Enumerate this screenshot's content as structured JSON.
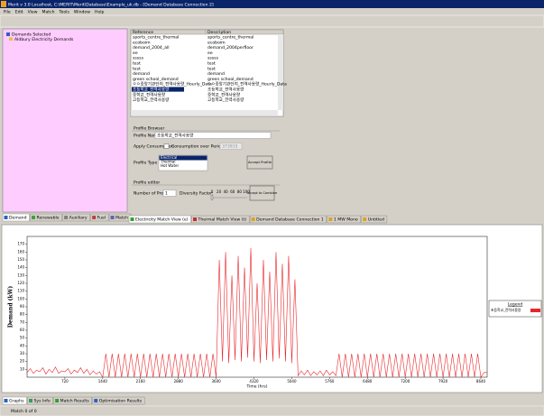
{
  "title_bar": "Merit v 3.0 Localhost, C:\\MERIT\\Merit\\Database\\Example_uk.db - [Demand Database Connection 2]",
  "menu": [
    "File",
    "Edit",
    "View",
    "Match",
    "Tools",
    "Window",
    "Help"
  ],
  "tree": [
    "Demands Selected",
    "Aldbury Electricity Demands"
  ],
  "table": {
    "headers": [
      "Reference",
      "Description"
    ],
    "rows": [
      [
        "sports_centre_thermal",
        "sports_centre_thermal"
      ],
      [
        "ecoboim",
        "ecoboim"
      ],
      [
        "demand_2004_all",
        "demand_2004perfloor"
      ],
      [
        "ee",
        "ee"
      ],
      [
        "sssss",
        "sssss"
      ],
      [
        "test",
        "test"
      ],
      [
        "test",
        "test"
      ],
      [
        "demand",
        "demand"
      ],
      [
        "green school_demand",
        "green school_demand"
      ],
      [
        "ㅇㅇ중앙기관단지_전력사용량_Hourly_Data",
        "ㅇㅇ중앙기관단지_전력사용량_Hourly_Data"
      ],
      [
        "초등학교_전력사용량",
        "초등학교_전력사용량"
      ],
      [
        "중학교_전력사용량",
        "중학교_전력사용량"
      ],
      [
        "고등학교_전력사용량",
        "고등학교_전력사용량"
      ]
    ]
  },
  "profile_browser": {
    "title": "Profile Browser",
    "name_label": "Profile Name:",
    "name_value": "초등학교_전력사용량",
    "apply_label": "Apply Consumption",
    "consumption_label": "Consumption over Period (kWh)",
    "consumption_value": "373915",
    "type_label": "Profile Type",
    "types": [
      "Electrical",
      "Thermal",
      "Hot Water"
    ],
    "accept": "Accept Profile"
  },
  "profile_editor": {
    "title": "Profile editor",
    "number_label": "Number of Profiles:",
    "number_value": "1",
    "diversity_label": "Diversity Factor:",
    "slider_labels": [
      "0",
      "20",
      "40",
      "60",
      "80",
      "100"
    ],
    "accept": "Accept to Combine"
  },
  "left_tabs": [
    "Demand",
    "Renewable",
    "Auxiliary",
    "Fuel",
    "Match"
  ],
  "view_tabs": [
    "Electricity Match View (e)",
    "Thermal Match View (t)",
    "Demand Database Connection 1",
    "1 MW Mono",
    "Untitled"
  ],
  "bottom_tabs": [
    "Graphs",
    "Sys Info",
    "Match Results",
    "Optimisation Results"
  ],
  "status": "Match 0 of 0",
  "chart_data": {
    "type": "line",
    "xlabel": "Time (hrs)",
    "ylabel": "Demand (kW)",
    "legend_title": "Legend",
    "legend": "right",
    "xlim": [
      0,
      8760
    ],
    "ylim": [
      0,
      180
    ],
    "xticks": [
      720,
      1440,
      2160,
      2880,
      3600,
      4320,
      5040,
      5760,
      6480,
      7200,
      7920,
      8640
    ],
    "yticks": [
      10,
      20,
      30,
      40,
      50,
      60,
      70,
      80,
      90,
      100,
      110,
      120,
      130,
      140,
      150,
      160,
      170
    ],
    "x": [
      0,
      60,
      120,
      180,
      240,
      300,
      360,
      420,
      480,
      540,
      600,
      660,
      720,
      780,
      840,
      900,
      960,
      1020,
      1080,
      1140,
      1200,
      1260,
      1320,
      1380,
      1440,
      1500,
      1560,
      1620,
      1680,
      1740,
      1800,
      1860,
      1920,
      1980,
      2040,
      2100,
      2160,
      2220,
      2280,
      2340,
      2400,
      2460,
      2520,
      2580,
      2640,
      2700,
      2760,
      2820,
      2880,
      2940,
      3000,
      3060,
      3120,
      3180,
      3240,
      3300,
      3360,
      3420,
      3480,
      3540,
      3600,
      3660,
      3720,
      3780,
      3840,
      3900,
      3960,
      4020,
      4080,
      4140,
      4200,
      4260,
      4320,
      4380,
      4440,
      4500,
      4560,
      4620,
      4680,
      4740,
      4800,
      4860,
      4920,
      4980,
      5040,
      5100,
      5160,
      5220,
      5280,
      5340,
      5400,
      5460,
      5520,
      5580,
      5640,
      5700,
      5760,
      5820,
      5880,
      5940,
      6000,
      6060,
      6120,
      6180,
      6240,
      6300,
      6360,
      6420,
      6480,
      6540,
      6600,
      6660,
      6720,
      6780,
      6840,
      6900,
      6960,
      7020,
      7080,
      7140,
      7200,
      7260,
      7320,
      7380,
      7440,
      7500,
      7560,
      7620,
      7680,
      7740,
      7800,
      7860,
      7920,
      7980,
      8040,
      8100,
      8160,
      8220,
      8280,
      8340,
      8400,
      8460,
      8520,
      8580,
      8640,
      8700,
      8760
    ],
    "series": [
      {
        "name": "초등학교_전력사용량",
        "color": "#e8262a",
        "values": [
          6,
          11,
          5,
          9,
          7,
          12,
          4,
          10,
          6,
          13,
          5,
          8,
          7,
          11,
          4,
          9,
          6,
          12,
          5,
          10,
          3,
          8,
          4,
          7,
          0,
          30,
          0,
          30,
          0,
          30,
          0,
          30,
          0,
          30,
          0,
          30,
          0,
          30,
          0,
          30,
          0,
          30,
          0,
          30,
          0,
          30,
          0,
          30,
          0,
          30,
          0,
          30,
          0,
          30,
          0,
          30,
          0,
          30,
          0,
          30,
          0,
          150,
          20,
          160,
          18,
          130,
          22,
          155,
          20,
          140,
          25,
          165,
          20,
          120,
          18,
          150,
          22,
          135,
          20,
          160,
          24,
          145,
          20,
          155,
          18,
          125,
          2,
          8,
          3,
          9,
          2,
          7,
          3,
          8,
          2,
          9,
          3,
          7,
          2,
          30,
          0,
          30,
          0,
          30,
          0,
          30,
          0,
          30,
          0,
          30,
          0,
          30,
          0,
          30,
          0,
          30,
          0,
          30,
          0,
          30,
          0,
          30,
          0,
          30,
          0,
          30,
          0,
          30,
          0,
          30,
          0,
          30,
          0,
          30,
          0,
          30,
          0,
          30,
          0,
          30,
          0,
          30,
          0,
          30,
          0,
          6,
          6
        ]
      }
    ]
  }
}
